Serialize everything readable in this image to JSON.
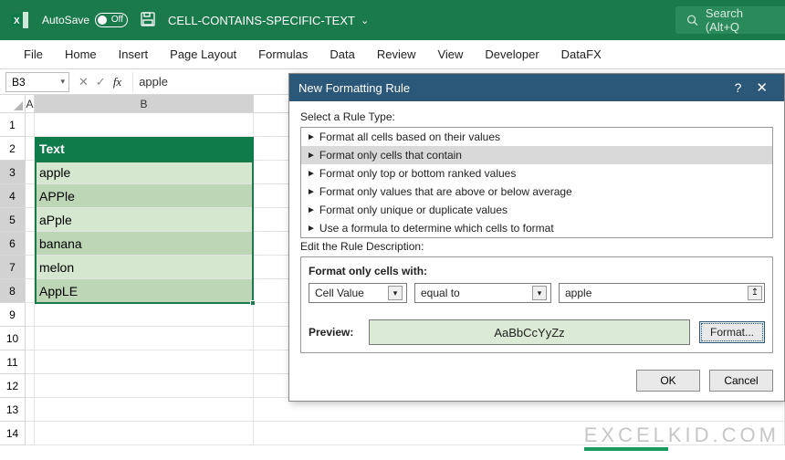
{
  "titlebar": {
    "autosave_label": "AutoSave",
    "autosave_state": "Off",
    "filename": "CELL-CONTAINS-SPECIFIC-TEXT",
    "search_label": "Search (Alt+Q"
  },
  "ribbon": {
    "tabs": [
      "File",
      "Home",
      "Insert",
      "Page Layout",
      "Formulas",
      "Data",
      "Review",
      "View",
      "Developer",
      "DataFX"
    ]
  },
  "formula_bar": {
    "name_box": "B3",
    "formula_text": "apple"
  },
  "grid": {
    "col_headers": [
      "A",
      "B"
    ],
    "row_numbers": [
      "1",
      "2",
      "3",
      "4",
      "5",
      "6",
      "7",
      "8",
      "9",
      "10",
      "11",
      "12",
      "13",
      "14"
    ],
    "table": {
      "header": "Text",
      "rows": [
        "apple",
        "APPle",
        "aPple",
        "banana",
        "melon",
        "AppLE"
      ]
    },
    "colors": {
      "header_bg": "#0f7a4a",
      "band1_bg": "#d5e8cf",
      "band2_bg": "#bdd6b6",
      "selection_border": "#1a7a4c"
    }
  },
  "dialog": {
    "title": "New Formatting Rule",
    "select_label": "Select a Rule Type:",
    "rule_types": [
      "Format all cells based on their values",
      "Format only cells that contain",
      "Format only top or bottom ranked values",
      "Format only values that are above or below average",
      "Format only unique or duplicate values",
      "Use a formula to determine which cells to format"
    ],
    "selected_rule_index": 1,
    "edit_label": "Edit the Rule Description:",
    "desc_heading": "Format only cells with:",
    "combo1_value": "Cell Value",
    "combo2_value": "equal to",
    "value_input": "apple",
    "preview_label": "Preview:",
    "preview_sample": "AaBbCcYyZz",
    "format_btn": "Format...",
    "ok_btn": "OK",
    "cancel_btn": "Cancel",
    "preview_bg": "#dbead4",
    "title_bg": "#2b5878"
  },
  "watermark": "EXCELKID.COM"
}
